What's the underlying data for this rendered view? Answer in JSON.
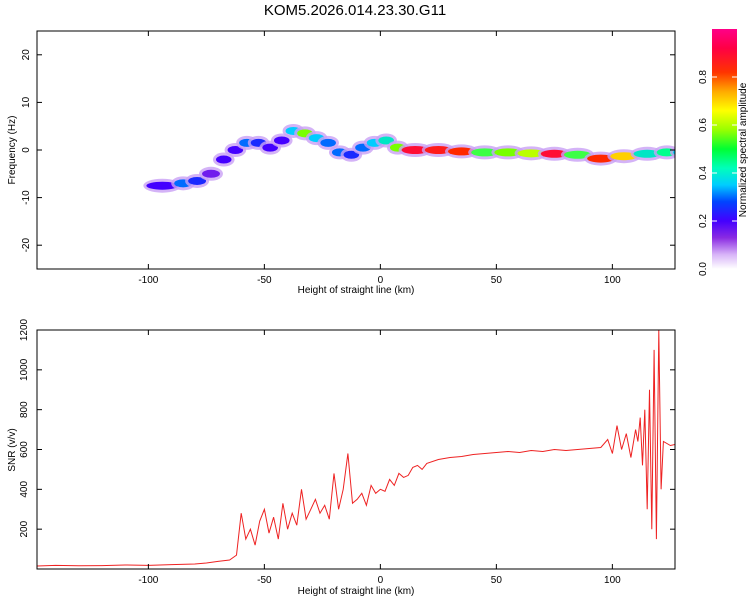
{
  "title": "KOM5.2026.014.23.30.G11",
  "chart_data": [
    {
      "type": "heatmap",
      "xlabel": "Height of straight line (km)",
      "ylabel": "Frequency (Hz)",
      "xlim": [
        -148,
        127
      ],
      "ylim": [
        -25,
        25
      ],
      "xticks": [
        -100,
        -50,
        0,
        50,
        100
      ],
      "xtick_labels": [
        "-100",
        "-50",
        "0",
        "50",
        "100"
      ],
      "yticks": [
        -20,
        -10,
        0,
        10,
        20
      ],
      "ytick_labels": [
        "-20",
        "-10",
        "0",
        "10",
        "20"
      ],
      "colorbar": {
        "label": "Normalized spectral amplitude",
        "range": [
          0,
          1
        ],
        "ticks": [
          0.0,
          0.2,
          0.4,
          0.6,
          0.8
        ],
        "tick_labels": [
          "0.0",
          "0.2",
          "0.4",
          "0.6",
          "0.8"
        ]
      },
      "ridge": {
        "x": [
          -100,
          -88,
          -82,
          -76,
          -70,
          -65,
          -60,
          -55,
          -50,
          -45,
          -40,
          -35,
          -30,
          -25,
          -20,
          -15,
          -10,
          -5,
          0,
          5,
          10,
          20,
          30,
          40,
          50,
          60,
          70,
          80,
          90,
          100,
          110,
          120,
          127
        ],
        "freq": [
          -7.5,
          -7,
          -6.5,
          -5,
          -2,
          0,
          1.5,
          1.5,
          0.5,
          2,
          4,
          3.5,
          2.5,
          1.5,
          -0.5,
          -1,
          0.5,
          1.5,
          2,
          0.5,
          0,
          0,
          -0.3,
          -0.5,
          -0.5,
          -0.7,
          -0.8,
          -1,
          -1.8,
          -1.3,
          -0.8,
          -0.5,
          -0.5
        ],
        "amplitude": [
          0.2,
          0.3,
          0.25,
          0.15,
          0.2,
          0.2,
          0.3,
          0.25,
          0.2,
          0.2,
          0.35,
          0.55,
          0.35,
          0.3,
          0.3,
          0.25,
          0.3,
          0.35,
          0.4,
          0.55,
          0.95,
          0.9,
          0.85,
          0.5,
          0.55,
          0.6,
          0.95,
          0.5,
          0.85,
          0.7,
          0.4,
          0.45,
          0.35
        ]
      }
    },
    {
      "type": "line",
      "xlabel": "Height of straight line (km)",
      "ylabel": "SNR (v/v)",
      "xlim": [
        -148,
        127
      ],
      "ylim": [
        0,
        1200
      ],
      "xticks": [
        -100,
        -50,
        0,
        50,
        100
      ],
      "xtick_labels": [
        "-100",
        "-50",
        "0",
        "50",
        "100"
      ],
      "yticks": [
        200,
        400,
        600,
        800,
        1000,
        1200
      ],
      "ytick_labels": [
        "200",
        "400",
        "600",
        "800",
        "1000",
        "1200"
      ],
      "series": [
        {
          "name": "SNR",
          "color": "#ee2222",
          "x": [
            -148,
            -140,
            -130,
            -120,
            -110,
            -100,
            -90,
            -80,
            -75,
            -70,
            -65,
            -62,
            -60,
            -58,
            -56,
            -54,
            -52,
            -50,
            -48,
            -46,
            -44,
            -42,
            -40,
            -38,
            -36,
            -34,
            -32,
            -30,
            -28,
            -26,
            -24,
            -22,
            -20,
            -18,
            -16,
            -14,
            -12,
            -10,
            -8,
            -6,
            -4,
            -2,
            0,
            2,
            4,
            6,
            8,
            10,
            12,
            14,
            16,
            18,
            20,
            25,
            30,
            35,
            40,
            45,
            50,
            55,
            60,
            65,
            70,
            75,
            80,
            85,
            90,
            95,
            98,
            100,
            102,
            104,
            106,
            108,
            110,
            111,
            112,
            113,
            114,
            115,
            116,
            117,
            118,
            119,
            120,
            121,
            122,
            125,
            127
          ],
          "y": [
            15,
            18,
            16,
            17,
            20,
            18,
            22,
            25,
            30,
            38,
            45,
            70,
            280,
            150,
            200,
            120,
            240,
            300,
            180,
            260,
            150,
            330,
            200,
            280,
            220,
            400,
            250,
            300,
            350,
            280,
            320,
            250,
            480,
            300,
            400,
            580,
            330,
            350,
            380,
            320,
            420,
            380,
            400,
            390,
            450,
            420,
            480,
            460,
            470,
            510,
            520,
            500,
            530,
            550,
            560,
            565,
            575,
            580,
            585,
            590,
            585,
            595,
            590,
            600,
            595,
            600,
            605,
            610,
            650,
            580,
            720,
            600,
            680,
            560,
            700,
            640,
            760,
            520,
            800,
            300,
            900,
            200,
            1100,
            150,
            1200,
            400,
            640,
            620,
            625
          ]
        }
      ]
    }
  ]
}
